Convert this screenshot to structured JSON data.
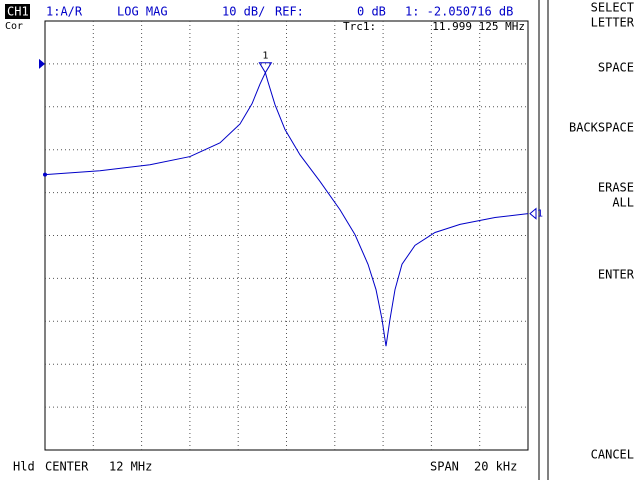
{
  "header": {
    "channel": "CH1",
    "correction": "Cor",
    "measurement": "1:A/R",
    "format": "LOG MAG",
    "scale": "10 dB/",
    "ref_label": "REF:",
    "ref_value": "0 dB",
    "marker_readout": "1: -2.050716 dB",
    "trace_label": "Trc1:",
    "marker_freq": "11.999 125 MHz"
  },
  "footer": {
    "hold": "Hld",
    "center_label": "CENTER",
    "center_value": "12 MHz",
    "span_label": "SPAN",
    "span_value": "20 kHz"
  },
  "softkeys": [
    [
      "SELECT",
      "LETTER"
    ],
    [
      "SPACE"
    ],
    [
      "BACKSPACE"
    ],
    [
      "ERASE",
      "ALL"
    ],
    [
      "ENTER"
    ],
    [
      "CANCEL"
    ]
  ],
  "chart_data": {
    "type": "line",
    "color": "#0000c8",
    "grid": true,
    "xlim": [
      11.99,
      12.01
    ],
    "ylim": [
      -90,
      10
    ],
    "x": [
      11.99,
      11.992277,
      11.994348,
      11.996004,
      11.997246,
      11.998075,
      11.998571,
      11.998903,
      11.999125,
      11.999234,
      11.999524,
      11.999938,
      12.000559,
      12.001387,
      12.002215,
      12.002836,
      12.003375,
      12.003706,
      12.003954,
      12.00412,
      12.004286,
      12.004493,
      12.004783,
      12.005321,
      12.006149,
      12.007184,
      12.008634,
      12.01
    ],
    "values": [
      -25.8,
      -24.9,
      -23.5,
      -21.6,
      -18.4,
      -14.0,
      -9.3,
      -4.7,
      -2.05,
      -4.2,
      -9.5,
      -15.3,
      -21.2,
      -27.4,
      -34.0,
      -39.8,
      -46.7,
      -52.6,
      -59.5,
      -65.8,
      -59.5,
      -52.6,
      -46.7,
      -42.3,
      -39.3,
      -37.4,
      -35.8,
      -34.9
    ],
    "marker_label": "1",
    "ref_marker_label": "1"
  }
}
